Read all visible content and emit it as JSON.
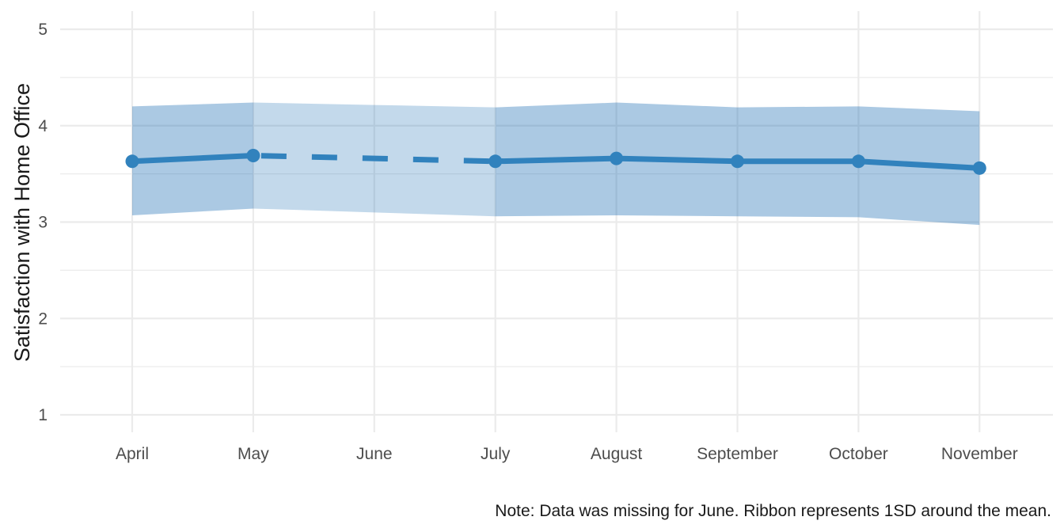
{
  "chart_data": {
    "type": "line",
    "ylabel": "Satisfaction with Home Office",
    "xlabel": "",
    "caption": "Note: Data was missing for June. Ribbon represents 1SD around the mean.",
    "categories": [
      "April",
      "May",
      "June",
      "July",
      "August",
      "September",
      "October",
      "November"
    ],
    "y_ticks": [
      "1",
      "2",
      "3",
      "4",
      "5"
    ],
    "ylim": [
      1,
      5
    ],
    "grid": true,
    "series": [
      {
        "values": [
          3.63,
          3.69,
          null,
          3.63,
          3.66,
          3.63,
          3.63,
          3.56
        ],
        "ribbon_upper": [
          4.2,
          4.24,
          null,
          4.19,
          4.24,
          4.19,
          4.2,
          4.15
        ],
        "ribbon_lower": [
          3.07,
          3.14,
          null,
          3.06,
          3.07,
          3.06,
          3.05,
          2.97
        ],
        "missing": [
          "June"
        ],
        "interpolated_segment": "dashed"
      }
    ],
    "colors": {
      "line": "#3182bd",
      "ribbon": "#2171b5",
      "grid": "#ebebeb"
    }
  }
}
